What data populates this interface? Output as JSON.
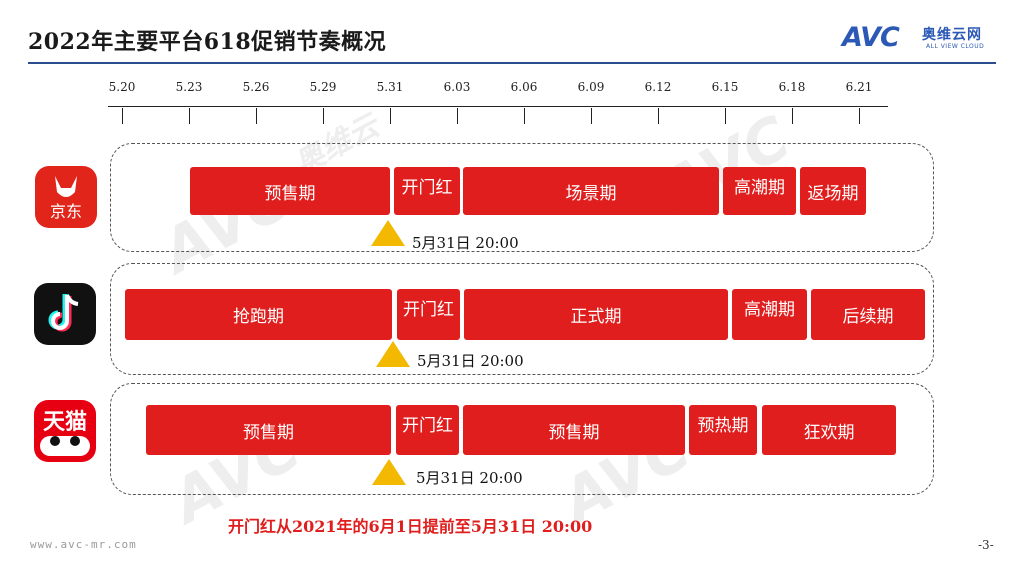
{
  "header": {
    "title": "2022年主要平台618促销节奏概况",
    "logo_main": "AVC",
    "logo_cn": "奥维云网",
    "logo_en": "ALL VIEW CLOUD"
  },
  "timeline": {
    "ticks": [
      "5.20",
      "5.23",
      "5.26",
      "5.29",
      "5.31",
      "6.03",
      "6.06",
      "6.09",
      "6.12",
      "6.15",
      "6.18",
      "6.21"
    ]
  },
  "platforms": [
    {
      "name": "京东",
      "phases": [
        "预售期",
        "开门红",
        "场景期",
        "高潮期",
        "返场期"
      ],
      "marker": "5月31日 20:00"
    },
    {
      "name": "抖音",
      "phases": [
        "抢跑期",
        "开门红",
        "正式期",
        "高潮期",
        "后续期"
      ],
      "marker": "5月31日 20:00"
    },
    {
      "name": "天猫",
      "phases": [
        "预售期",
        "开门红",
        "预售期",
        "预热期",
        "狂欢期"
      ],
      "marker": "5月31日 20:00"
    }
  ],
  "colors": {
    "phase": "#e01e1e",
    "marker": "#f2b900",
    "accent": "#2a4d8f"
  },
  "note": "开门红从2021年的6月1日提前至5月31日 20:00",
  "footer": {
    "url": "www.avc-mr.com",
    "page": "-3-"
  }
}
